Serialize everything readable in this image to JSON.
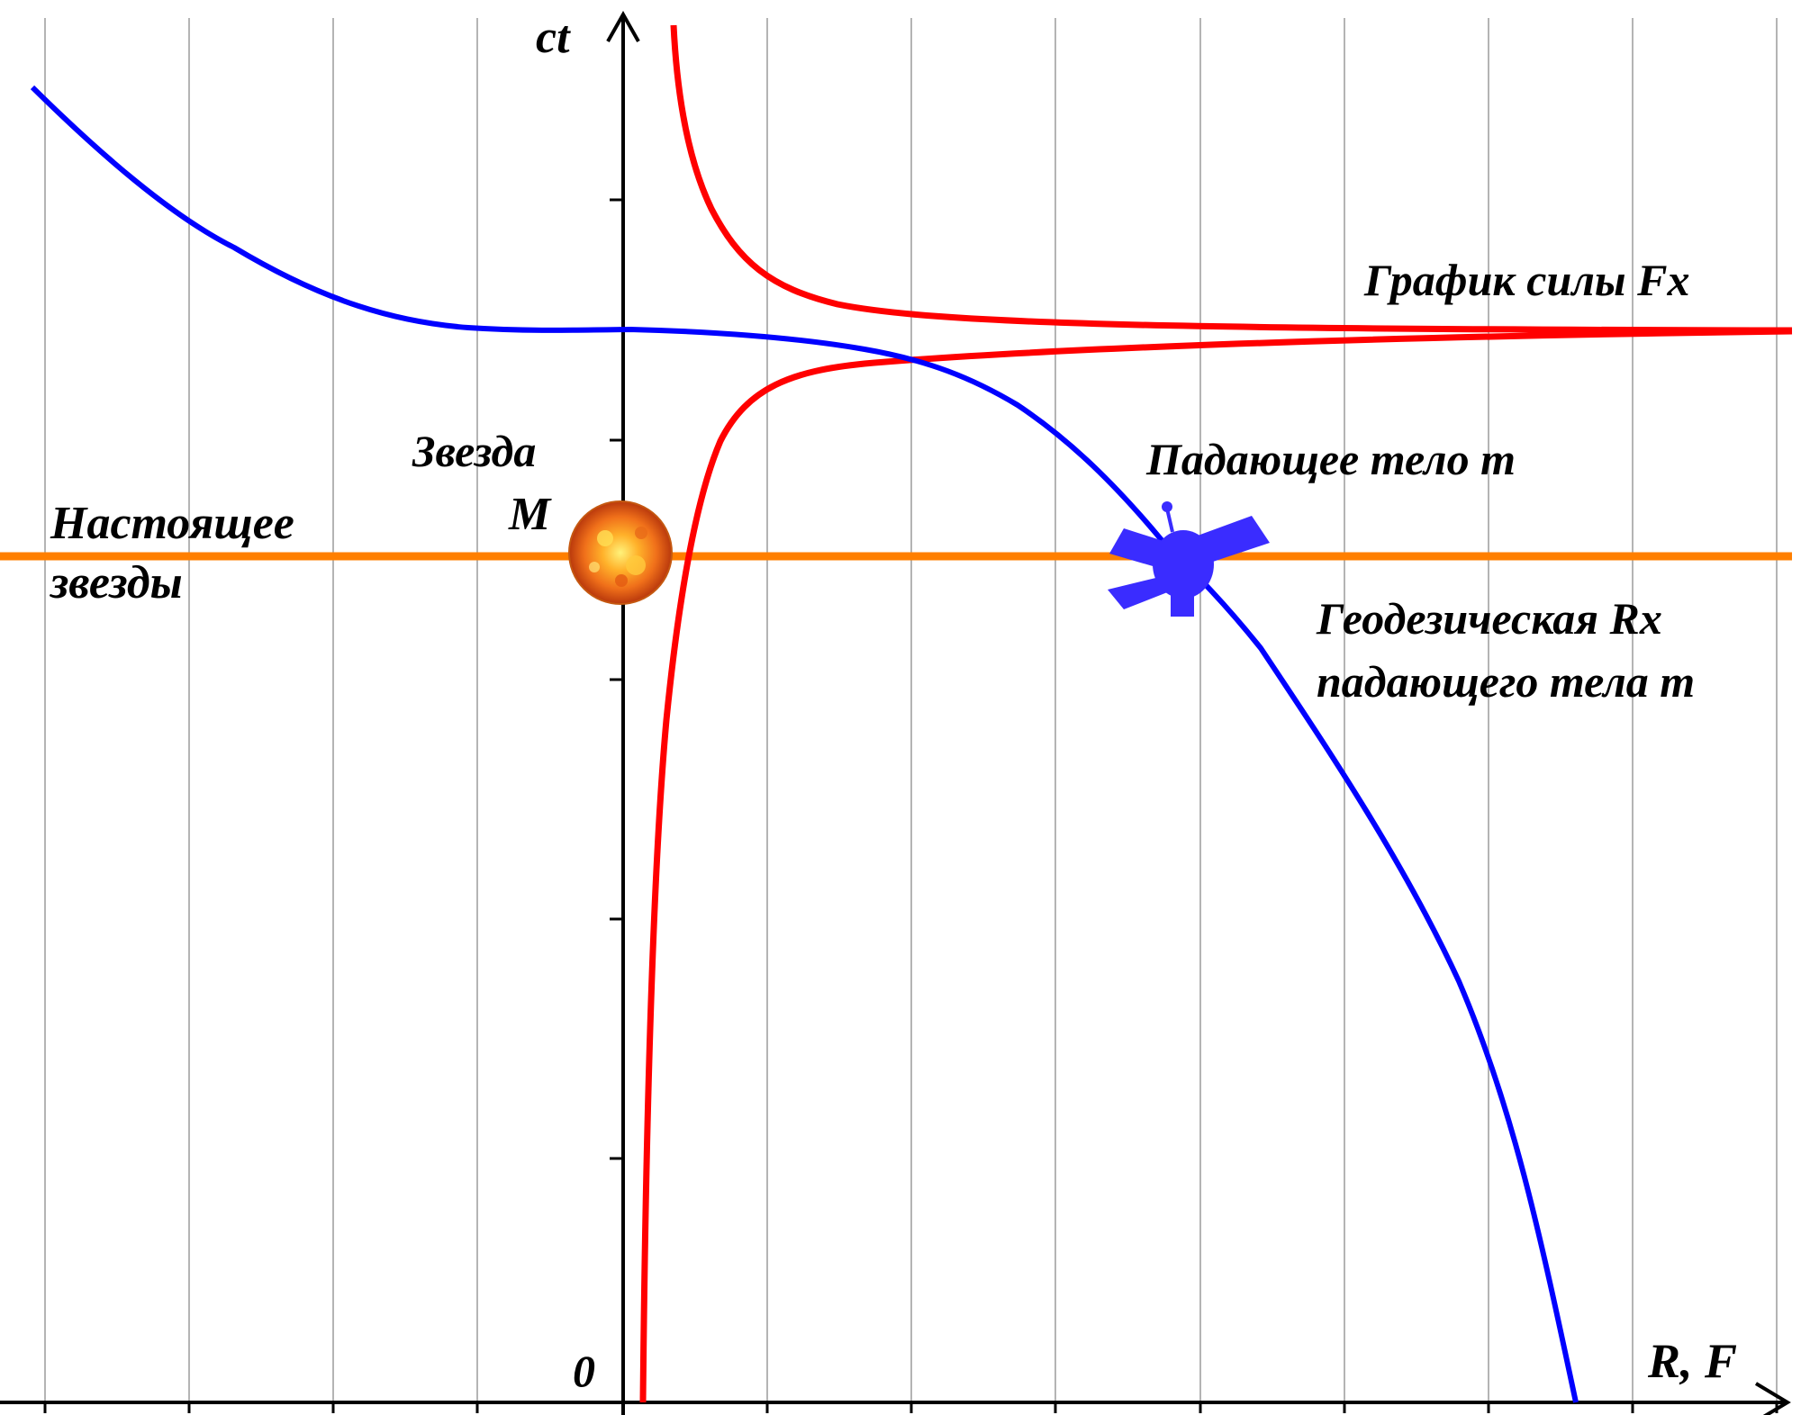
{
  "diagram": {
    "axes": {
      "y_label": "ct",
      "x_label": "R, F",
      "origin_label": "0"
    },
    "labels": {
      "force_graph": "График силы Fx",
      "falling_body": "Падающее тело m",
      "star_line": "Звезда",
      "star_mass": "M",
      "present_line1": "Настоящее",
      "present_line2": "звезды",
      "geodesic_line1": "Геодезическая Rx",
      "geodesic_line2": "падающего тела m"
    },
    "colors": {
      "geodesic": "#0000ff",
      "force": "#ff0000",
      "present_line": "#ff7f00",
      "grid": "#b4b4b4",
      "axis": "#000000",
      "star": "#f07a18",
      "body": "#3a2cff"
    },
    "icons": {
      "star": "star-sun-icon",
      "body": "satellite-icon"
    }
  }
}
